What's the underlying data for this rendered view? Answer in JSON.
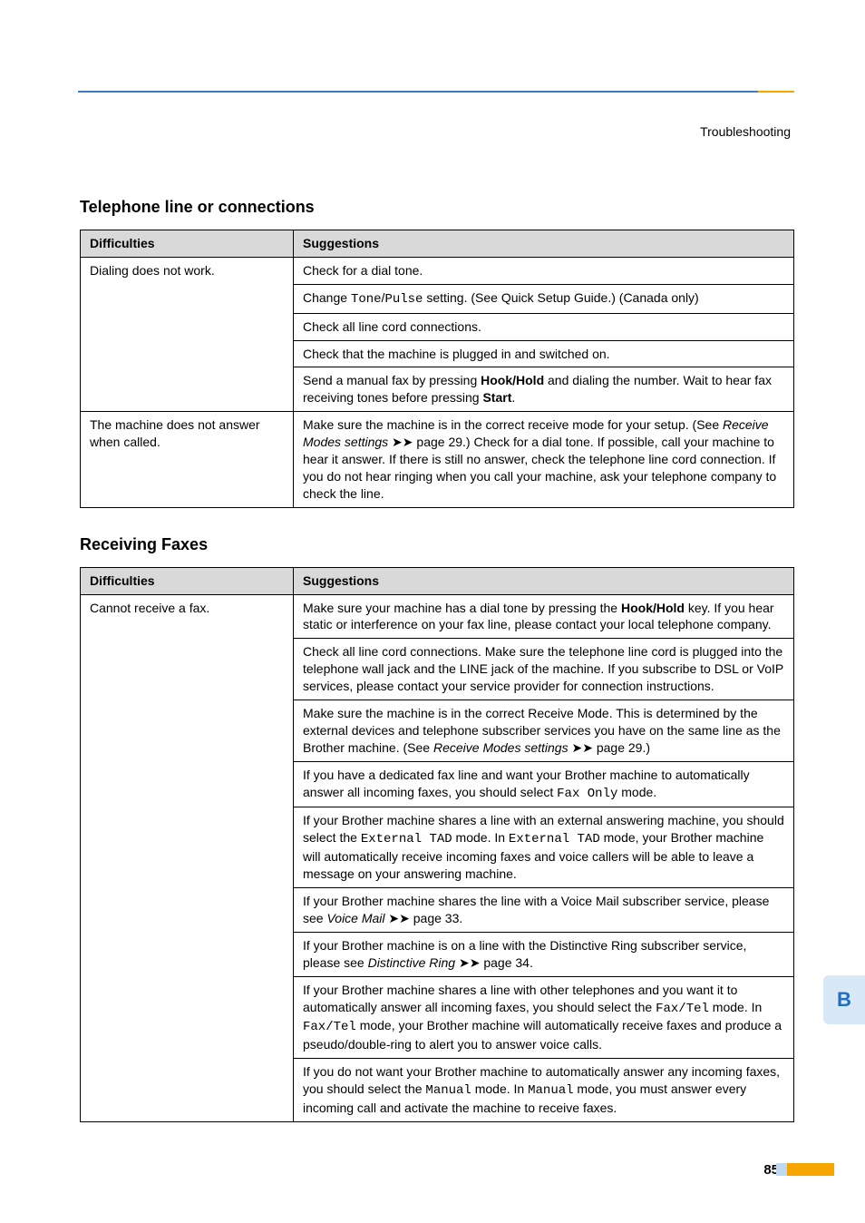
{
  "header": {
    "breadcrumb": "Troubleshooting"
  },
  "section1": {
    "title": "Telephone line or connections",
    "col1": "Difficulties",
    "col2": "Suggestions",
    "row1_diff": "Dialing does not work.",
    "row1_sug1": "Check for a dial tone.",
    "row1_sug2a": "Change ",
    "row1_sug2b": "Tone",
    "row1_sug2c": "/",
    "row1_sug2d": "Pulse",
    "row1_sug2e": " setting. (See Quick Setup Guide.) (Canada only)",
    "row1_sug3": "Check all line cord connections.",
    "row1_sug4": "Check that the machine is plugged in and switched on.",
    "row1_sug5a": "Send a manual fax by pressing ",
    "row1_sug5b": "Hook/Hold",
    "row1_sug5c": " and dialing the number. Wait to hear fax receiving tones before pressing ",
    "row1_sug5d": "Start",
    "row1_sug5e": ".",
    "row2_diff": "The machine does not answer when called.",
    "row2_sug_a": "Make sure the machine is in the correct receive mode for your setup. (See ",
    "row2_sug_b": "Receive Modes settings",
    "row2_sug_c": " ➤➤ page 29.) Check for a dial tone. If possible, call your machine to hear it answer. If there is still no answer, check the telephone line cord connection. If you do not hear ringing when you call your machine, ask your telephone company to check the line."
  },
  "section2": {
    "title": "Receiving Faxes",
    "col1": "Difficulties",
    "col2": "Suggestions",
    "row1_diff": "Cannot receive a fax.",
    "s1a": "Make sure your machine has a dial tone by pressing the ",
    "s1b": "Hook/Hold",
    "s1c": " key. If you hear static or interference on your fax line, please contact your local telephone company.",
    "s2": "Check all line cord connections. Make sure the telephone line cord is plugged into the telephone wall jack and the LINE jack of the machine. If you subscribe to DSL or VoIP services, please contact your service provider for connection instructions.",
    "s3a": "Make sure the machine is in the correct Receive Mode. This is determined by the external devices and telephone subscriber services you have on the same line as the Brother machine. (See ",
    "s3b": "Receive Modes settings",
    "s3c": " ➤➤ page 29.)",
    "s4a": "If you have a dedicated fax line and want your Brother machine to automatically answer all incoming faxes, you should select ",
    "s4b": "Fax Only",
    "s4c": " mode.",
    "s5a": "If your Brother machine shares a line with an external answering machine, you should select the ",
    "s5b": "External TAD",
    "s5c": " mode. In ",
    "s5d": "External TAD",
    "s5e": " mode, your Brother machine will automatically receive incoming faxes and voice callers will be able to leave a message on your answering machine.",
    "s6a": "If your Brother machine shares the line with a Voice Mail subscriber service, please see ",
    "s6b": "Voice Mail",
    "s6c": " ➤➤ page 33.",
    "s7a": "If your Brother machine is on a line with the Distinctive Ring subscriber service, please see ",
    "s7b": "Distinctive Ring",
    "s7c": " ➤➤ page 34.",
    "s8a": "If your Brother machine shares a line with other telephones and you want it to automatically answer all incoming faxes, you should select the ",
    "s8b": "Fax/Tel",
    "s8c": " mode. In ",
    "s8d": "Fax/Tel",
    "s8e": " mode, your Brother machine will automatically receive faxes and produce a pseudo/double-ring to alert you to answer voice calls.",
    "s9a": "If you do not want your Brother machine to automatically answer any incoming faxes, you should select the ",
    "s9b": "Manual",
    "s9c": " mode. In ",
    "s9d": "Manual",
    "s9e": " mode, you must answer every incoming call and activate the machine to receive faxes."
  },
  "sideTab": "B",
  "pageNumber": "85"
}
